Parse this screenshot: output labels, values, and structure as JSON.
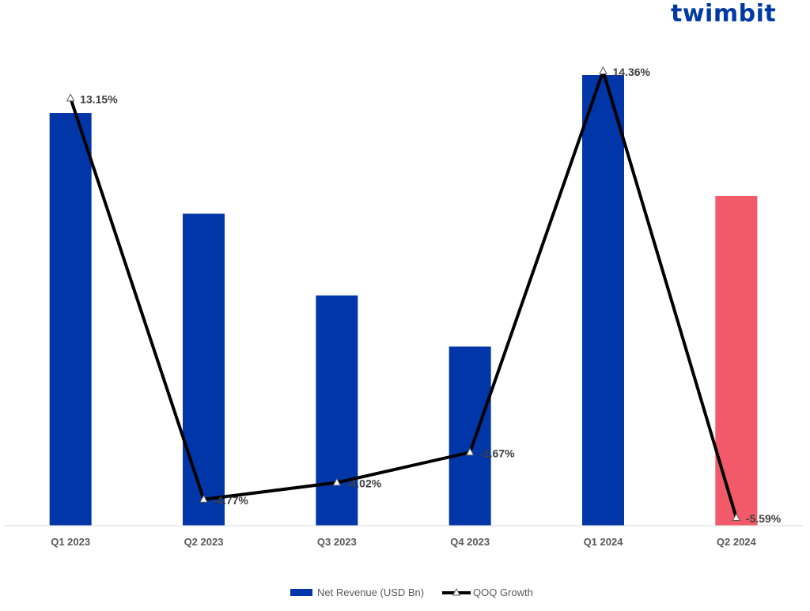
{
  "logo": {
    "text": "twimbit"
  },
  "chart_data": {
    "type": "bar",
    "categories": [
      "Q1 2023",
      "Q2 2023",
      "Q3 2023",
      "Q4 2023",
      "Q1 2024",
      "Q2 2024"
    ],
    "series": [
      {
        "name": "Net Revenue (USD Bn)",
        "kind": "bar",
        "values": [
          100,
          75.6,
          55.8,
          43.4,
          109.2,
          79.9
        ],
        "colors": [
          "#0036a8",
          "#0036a8",
          "#0036a8",
          "#0036a8",
          "#0036a8",
          "#f25a69"
        ]
      },
      {
        "name": "QOQ Growth",
        "kind": "line",
        "values": [
          13.15,
          -4.77,
          -4.02,
          -2.67,
          14.36,
          -5.59
        ],
        "labels": [
          "13.15%",
          "-4.77%",
          "-4.02%",
          "-2.67%",
          "14.36%",
          "-5.59%"
        ],
        "color": "#000000"
      }
    ],
    "title": "",
    "xlabel": "",
    "ylabel": "",
    "legend_position": "bottom",
    "grid": false
  }
}
